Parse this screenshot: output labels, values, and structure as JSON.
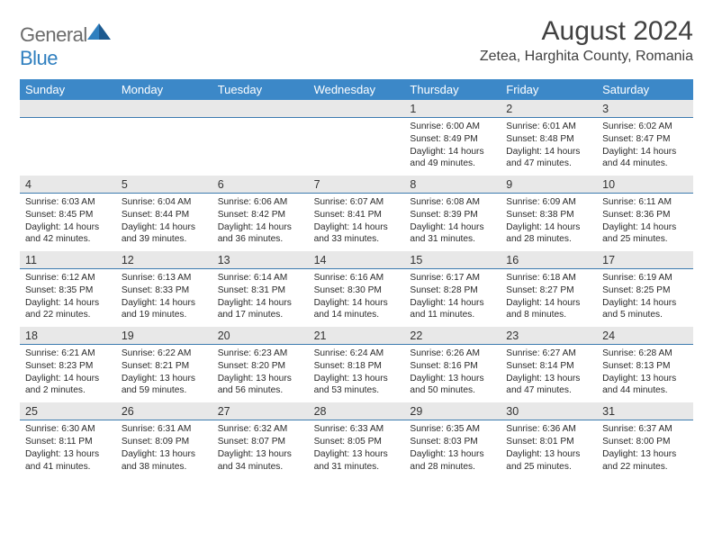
{
  "logo": {
    "text_general": "General",
    "text_blue": "Blue"
  },
  "title": "August 2024",
  "location": "Zetea, Harghita County, Romania",
  "header_color": "#3c88c8",
  "header_rule_color": "#3c7baf",
  "daynum_bg": "#e8e8e8",
  "text_color": "#333333",
  "day_headers": [
    "Sunday",
    "Monday",
    "Tuesday",
    "Wednesday",
    "Thursday",
    "Friday",
    "Saturday"
  ],
  "weeks": [
    {
      "nums": [
        "",
        "",
        "",
        "",
        "1",
        "2",
        "3"
      ],
      "details": [
        [],
        [],
        [],
        [],
        [
          "Sunrise: 6:00 AM",
          "Sunset: 8:49 PM",
          "Daylight: 14 hours",
          "and 49 minutes."
        ],
        [
          "Sunrise: 6:01 AM",
          "Sunset: 8:48 PM",
          "Daylight: 14 hours",
          "and 47 minutes."
        ],
        [
          "Sunrise: 6:02 AM",
          "Sunset: 8:47 PM",
          "Daylight: 14 hours",
          "and 44 minutes."
        ]
      ]
    },
    {
      "nums": [
        "4",
        "5",
        "6",
        "7",
        "8",
        "9",
        "10"
      ],
      "details": [
        [
          "Sunrise: 6:03 AM",
          "Sunset: 8:45 PM",
          "Daylight: 14 hours",
          "and 42 minutes."
        ],
        [
          "Sunrise: 6:04 AM",
          "Sunset: 8:44 PM",
          "Daylight: 14 hours",
          "and 39 minutes."
        ],
        [
          "Sunrise: 6:06 AM",
          "Sunset: 8:42 PM",
          "Daylight: 14 hours",
          "and 36 minutes."
        ],
        [
          "Sunrise: 6:07 AM",
          "Sunset: 8:41 PM",
          "Daylight: 14 hours",
          "and 33 minutes."
        ],
        [
          "Sunrise: 6:08 AM",
          "Sunset: 8:39 PM",
          "Daylight: 14 hours",
          "and 31 minutes."
        ],
        [
          "Sunrise: 6:09 AM",
          "Sunset: 8:38 PM",
          "Daylight: 14 hours",
          "and 28 minutes."
        ],
        [
          "Sunrise: 6:11 AM",
          "Sunset: 8:36 PM",
          "Daylight: 14 hours",
          "and 25 minutes."
        ]
      ]
    },
    {
      "nums": [
        "11",
        "12",
        "13",
        "14",
        "15",
        "16",
        "17"
      ],
      "details": [
        [
          "Sunrise: 6:12 AM",
          "Sunset: 8:35 PM",
          "Daylight: 14 hours",
          "and 22 minutes."
        ],
        [
          "Sunrise: 6:13 AM",
          "Sunset: 8:33 PM",
          "Daylight: 14 hours",
          "and 19 minutes."
        ],
        [
          "Sunrise: 6:14 AM",
          "Sunset: 8:31 PM",
          "Daylight: 14 hours",
          "and 17 minutes."
        ],
        [
          "Sunrise: 6:16 AM",
          "Sunset: 8:30 PM",
          "Daylight: 14 hours",
          "and 14 minutes."
        ],
        [
          "Sunrise: 6:17 AM",
          "Sunset: 8:28 PM",
          "Daylight: 14 hours",
          "and 11 minutes."
        ],
        [
          "Sunrise: 6:18 AM",
          "Sunset: 8:27 PM",
          "Daylight: 14 hours",
          "and 8 minutes."
        ],
        [
          "Sunrise: 6:19 AM",
          "Sunset: 8:25 PM",
          "Daylight: 14 hours",
          "and 5 minutes."
        ]
      ]
    },
    {
      "nums": [
        "18",
        "19",
        "20",
        "21",
        "22",
        "23",
        "24"
      ],
      "details": [
        [
          "Sunrise: 6:21 AM",
          "Sunset: 8:23 PM",
          "Daylight: 14 hours",
          "and 2 minutes."
        ],
        [
          "Sunrise: 6:22 AM",
          "Sunset: 8:21 PM",
          "Daylight: 13 hours",
          "and 59 minutes."
        ],
        [
          "Sunrise: 6:23 AM",
          "Sunset: 8:20 PM",
          "Daylight: 13 hours",
          "and 56 minutes."
        ],
        [
          "Sunrise: 6:24 AM",
          "Sunset: 8:18 PM",
          "Daylight: 13 hours",
          "and 53 minutes."
        ],
        [
          "Sunrise: 6:26 AM",
          "Sunset: 8:16 PM",
          "Daylight: 13 hours",
          "and 50 minutes."
        ],
        [
          "Sunrise: 6:27 AM",
          "Sunset: 8:14 PM",
          "Daylight: 13 hours",
          "and 47 minutes."
        ],
        [
          "Sunrise: 6:28 AM",
          "Sunset: 8:13 PM",
          "Daylight: 13 hours",
          "and 44 minutes."
        ]
      ]
    },
    {
      "nums": [
        "25",
        "26",
        "27",
        "28",
        "29",
        "30",
        "31"
      ],
      "details": [
        [
          "Sunrise: 6:30 AM",
          "Sunset: 8:11 PM",
          "Daylight: 13 hours",
          "and 41 minutes."
        ],
        [
          "Sunrise: 6:31 AM",
          "Sunset: 8:09 PM",
          "Daylight: 13 hours",
          "and 38 minutes."
        ],
        [
          "Sunrise: 6:32 AM",
          "Sunset: 8:07 PM",
          "Daylight: 13 hours",
          "and 34 minutes."
        ],
        [
          "Sunrise: 6:33 AM",
          "Sunset: 8:05 PM",
          "Daylight: 13 hours",
          "and 31 minutes."
        ],
        [
          "Sunrise: 6:35 AM",
          "Sunset: 8:03 PM",
          "Daylight: 13 hours",
          "and 28 minutes."
        ],
        [
          "Sunrise: 6:36 AM",
          "Sunset: 8:01 PM",
          "Daylight: 13 hours",
          "and 25 minutes."
        ],
        [
          "Sunrise: 6:37 AM",
          "Sunset: 8:00 PM",
          "Daylight: 13 hours",
          "and 22 minutes."
        ]
      ]
    }
  ]
}
